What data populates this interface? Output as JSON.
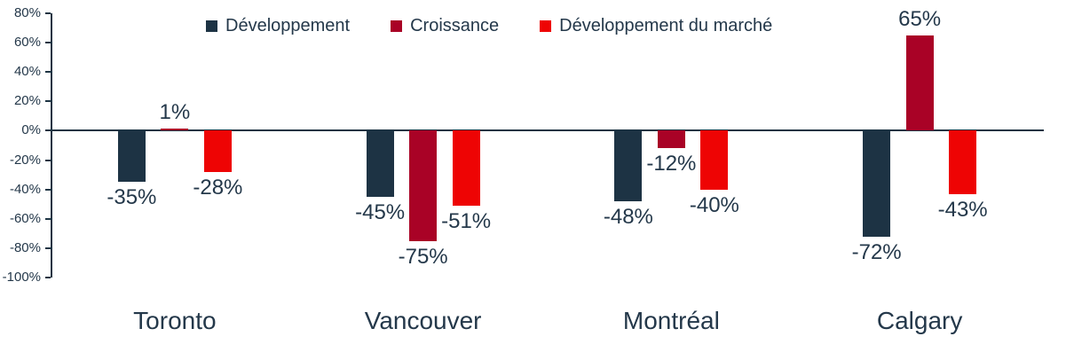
{
  "colors": {
    "text": "#24384a",
    "axis": "#1d3443",
    "background": "#ffffff"
  },
  "chart_data": {
    "type": "bar",
    "title": "",
    "xlabel": "",
    "ylabel": "",
    "categories": [
      "Toronto",
      "Vancouver",
      "Montréal",
      "Calgary"
    ],
    "series": [
      {
        "name": "Développement",
        "color": "#1d3344",
        "values": [
          -35,
          -45,
          -48,
          -72
        ]
      },
      {
        "name": "Croissance",
        "color": "#a90226",
        "values": [
          1,
          -75,
          -12,
          65
        ]
      },
      {
        "name": "Développement du marché",
        "color": "#ee0404",
        "values": [
          -28,
          -51,
          -40,
          -43
        ]
      }
    ],
    "ylim": [
      -100,
      80
    ],
    "ytick_step": 20,
    "ytick_suffix": "%",
    "data_label_suffix": "%",
    "grid": false,
    "legend_position": "top"
  }
}
